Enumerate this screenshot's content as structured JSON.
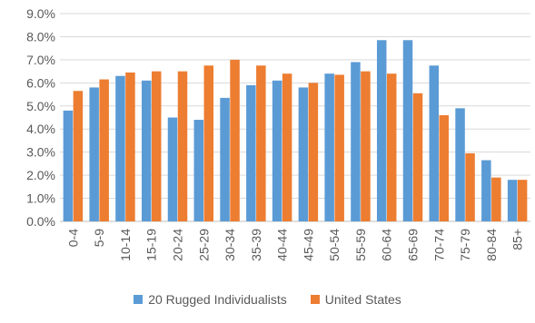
{
  "chart_data": {
    "type": "bar",
    "categories": [
      "0-4",
      "5-9",
      "10-14",
      "15-19",
      "20-24",
      "25-29",
      "30-34",
      "35-39",
      "40-44",
      "45-49",
      "50-54",
      "55-59",
      "60-64",
      "65-69",
      "70-74",
      "75-79",
      "80-84",
      "85+"
    ],
    "series": [
      {
        "name": "20 Rugged Individualists",
        "color": "#5b9bd5",
        "values": [
          4.8,
          5.8,
          6.3,
          6.1,
          4.5,
          4.4,
          5.35,
          5.9,
          6.1,
          5.8,
          6.4,
          6.9,
          7.85,
          7.85,
          6.75,
          4.9,
          2.65,
          1.8
        ]
      },
      {
        "name": "United States",
        "color": "#ed7d31",
        "values": [
          5.65,
          6.15,
          6.45,
          6.5,
          6.5,
          6.75,
          7.0,
          6.75,
          6.4,
          6.0,
          6.35,
          6.5,
          6.4,
          5.55,
          4.6,
          2.95,
          1.9,
          1.8
        ]
      }
    ],
    "y_ticks": [
      "0.0%",
      "1.0%",
      "2.0%",
      "3.0%",
      "4.0%",
      "5.0%",
      "6.0%",
      "7.0%",
      "8.0%",
      "9.0%"
    ],
    "ylim": [
      0,
      9
    ],
    "grid": true,
    "legend_position": "bottom"
  }
}
